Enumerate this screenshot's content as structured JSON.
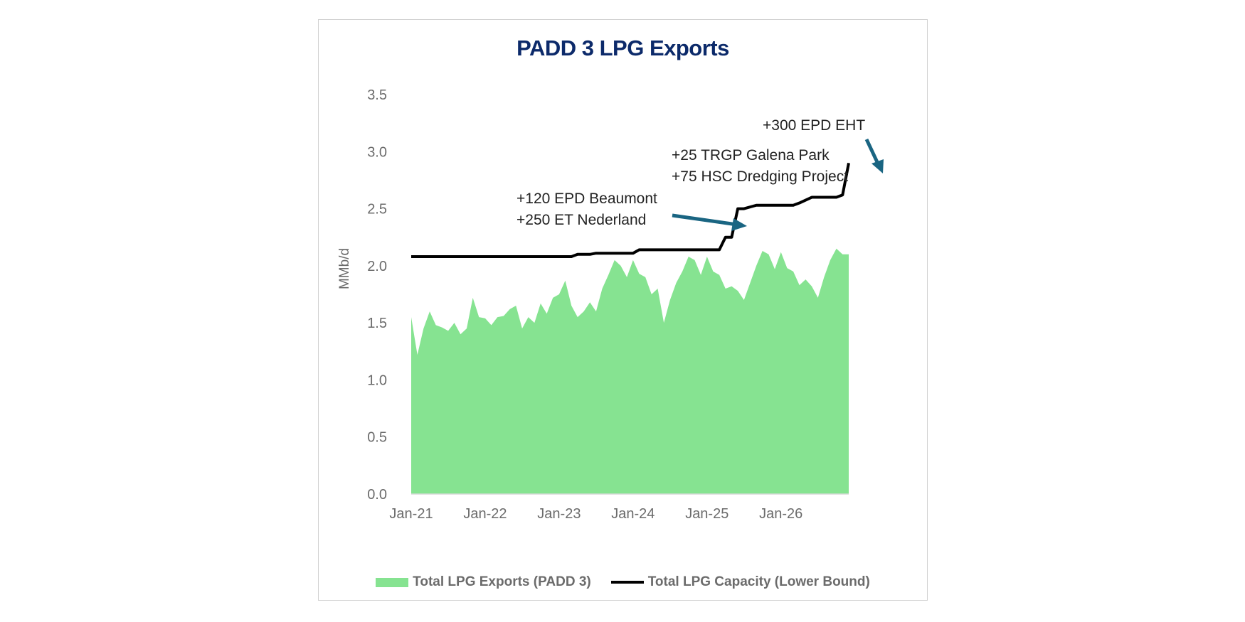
{
  "colors": {
    "exports_fill": "#86e391",
    "capacity_line": "#000000",
    "arrow": "#1a6582",
    "title": "#0c2a6a"
  },
  "chart_data": {
    "type": "area",
    "title": "PADD 3 LPG Exports",
    "ylabel": "MMb/d",
    "xlabel": "",
    "ylim": [
      0,
      3.5
    ],
    "yticks": [
      "0.0",
      "0.5",
      "1.0",
      "1.5",
      "2.0",
      "2.5",
      "3.0",
      "3.5"
    ],
    "x_range": [
      "Jan-21",
      "Dec-26"
    ],
    "xtick_labels": [
      "Jan-21",
      "Jan-22",
      "Jan-23",
      "Jan-24",
      "Jan-25",
      "Jan-26"
    ],
    "grid": false,
    "legend_position": "bottom",
    "series": [
      {
        "name": "Total LPG Exports (PADD 3)",
        "type": "area",
        "x": [
          "2021-01",
          "2021-02",
          "2021-03",
          "2021-04",
          "2021-05",
          "2021-06",
          "2021-07",
          "2021-08",
          "2021-09",
          "2021-10",
          "2021-11",
          "2021-12",
          "2022-01",
          "2022-02",
          "2022-03",
          "2022-04",
          "2022-05",
          "2022-06",
          "2022-07",
          "2022-08",
          "2022-09",
          "2022-10",
          "2022-11",
          "2022-12",
          "2023-01",
          "2023-02",
          "2023-03",
          "2023-04",
          "2023-05",
          "2023-06",
          "2023-07",
          "2023-08",
          "2023-09",
          "2023-10",
          "2023-11",
          "2023-12",
          "2024-01",
          "2024-02",
          "2024-03",
          "2024-04",
          "2024-05",
          "2024-06",
          "2024-07",
          "2024-08",
          "2024-09",
          "2024-10",
          "2024-11",
          "2024-12",
          "2025-01",
          "2025-02",
          "2025-03",
          "2025-04",
          "2025-05",
          "2025-06",
          "2025-07",
          "2025-08",
          "2025-09",
          "2025-10",
          "2025-11",
          "2025-12",
          "2026-01",
          "2026-02",
          "2026-03",
          "2026-04",
          "2026-05",
          "2026-06",
          "2026-07",
          "2026-08",
          "2026-09",
          "2026-10",
          "2026-11",
          "2026-12"
        ],
        "values": [
          1.55,
          1.22,
          1.45,
          1.6,
          1.48,
          1.46,
          1.43,
          1.5,
          1.4,
          1.45,
          1.72,
          1.55,
          1.54,
          1.48,
          1.55,
          1.56,
          1.62,
          1.65,
          1.45,
          1.55,
          1.5,
          1.67,
          1.58,
          1.72,
          1.75,
          1.87,
          1.65,
          1.55,
          1.6,
          1.68,
          1.6,
          1.8,
          1.92,
          2.05,
          2.0,
          1.9,
          2.05,
          1.93,
          1.9,
          1.75,
          1.8,
          1.5,
          1.7,
          1.85,
          1.95,
          2.08,
          2.05,
          1.92,
          2.08,
          1.95,
          1.92,
          1.8,
          1.82,
          1.78,
          1.7,
          1.85,
          2.0,
          2.13,
          2.1,
          1.97,
          2.12,
          1.98,
          1.95,
          1.83,
          1.88,
          1.82,
          1.72,
          1.9,
          2.05,
          2.15,
          2.1,
          2.1
        ]
      },
      {
        "name": "Total LPG Capacity (Lower Bound)",
        "type": "line",
        "x": [
          "2021-01",
          "2023-03",
          "2023-04",
          "2023-06",
          "2023-07",
          "2024-01",
          "2024-02",
          "2025-03",
          "2025-04",
          "2025-05",
          "2025-06",
          "2025-07",
          "2025-09",
          "2025-10",
          "2026-03",
          "2026-04",
          "2026-06",
          "2026-07",
          "2026-10",
          "2026-11",
          "2026-12"
        ],
        "values": [
          2.08,
          2.08,
          2.1,
          2.1,
          2.11,
          2.11,
          2.14,
          2.14,
          2.25,
          2.25,
          2.5,
          2.5,
          2.53,
          2.53,
          2.53,
          2.55,
          2.6,
          2.6,
          2.6,
          2.62,
          2.9
        ]
      }
    ],
    "annotations": [
      {
        "lines": [
          "+120 EPD Beaumont",
          "+250 ET Nederland"
        ]
      },
      {
        "lines": [
          "+25 TRGP Galena Park",
          "+75 HSC Dredging Project"
        ]
      },
      {
        "lines": [
          "+300 EPD EHT"
        ]
      }
    ],
    "legend": [
      "Total LPG Exports (PADD 3)",
      "Total LPG Capacity (Lower Bound)"
    ]
  }
}
